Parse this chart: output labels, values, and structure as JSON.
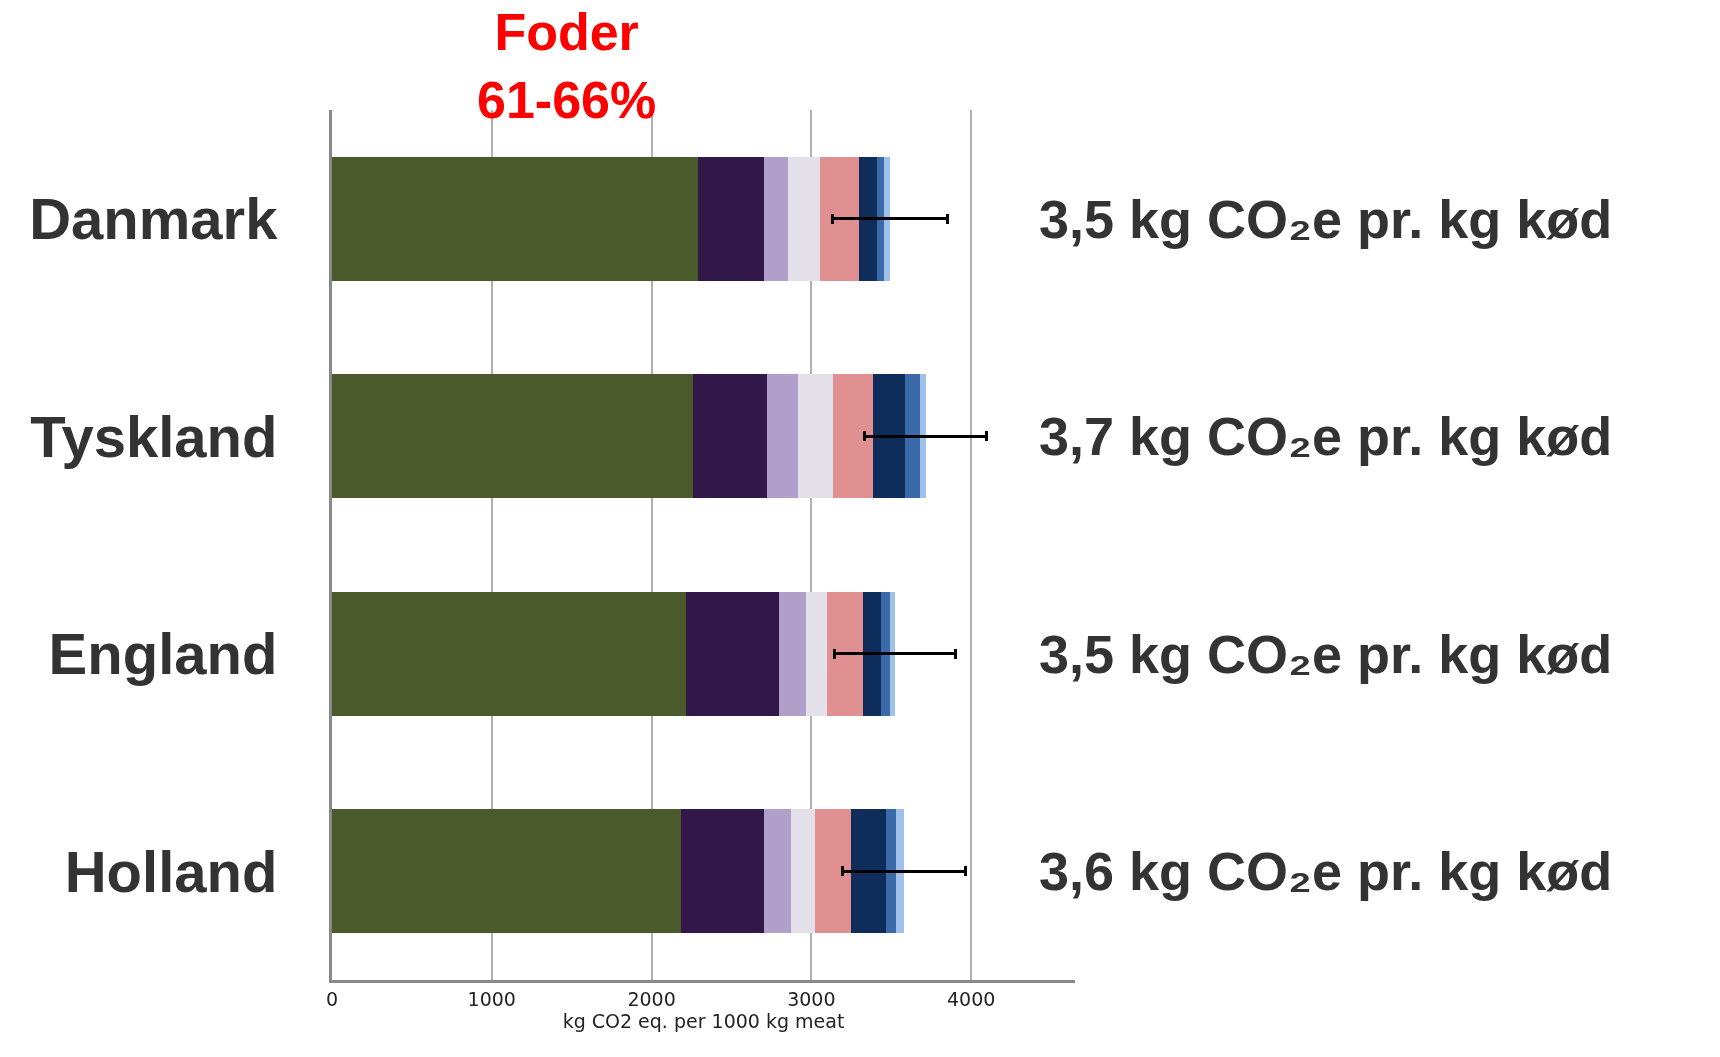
{
  "chart_data": {
    "type": "bar",
    "orientation": "horizontal",
    "stacked": true,
    "categories": [
      "Danmark",
      "Tyskland",
      "England",
      "Holland"
    ],
    "series": [
      {
        "color": "#4a5a2a",
        "values": [
          2290,
          2260,
          2215,
          2185
        ]
      },
      {
        "color": "#311848",
        "values": [
          415,
          465,
          580,
          520
        ]
      },
      {
        "color": "#b09fc8",
        "values": [
          150,
          190,
          170,
          165
        ]
      },
      {
        "color": "#e4e0ea",
        "values": [
          200,
          220,
          135,
          150
        ]
      },
      {
        "color": "#e09090",
        "values": [
          245,
          250,
          225,
          230
        ]
      },
      {
        "color": "#0f2d5a",
        "values": [
          110,
          200,
          110,
          215
        ]
      },
      {
        "color": "#3a6aaa",
        "values": [
          45,
          95,
          55,
          65
        ]
      },
      {
        "color": "#9fc0e8",
        "values": [
          35,
          35,
          35,
          50
        ],
        "errors": [
          360,
          380,
          380,
          385
        ]
      }
    ],
    "xlabel": "kg CO2 eq. per 1000 kg meat",
    "xlim": [
      0,
      4650
    ],
    "xticks": [
      0,
      1000,
      2000,
      3000,
      4000
    ],
    "grid": "x",
    "annotations": [
      "Foder\n61-66%",
      "3,5 kg CO₂e pr. kg kød",
      "3,7 kg CO₂e pr. kg kød",
      "3,5 kg CO₂e pr. kg kød",
      "3,6 kg CO₂e pr. kg kød"
    ]
  }
}
